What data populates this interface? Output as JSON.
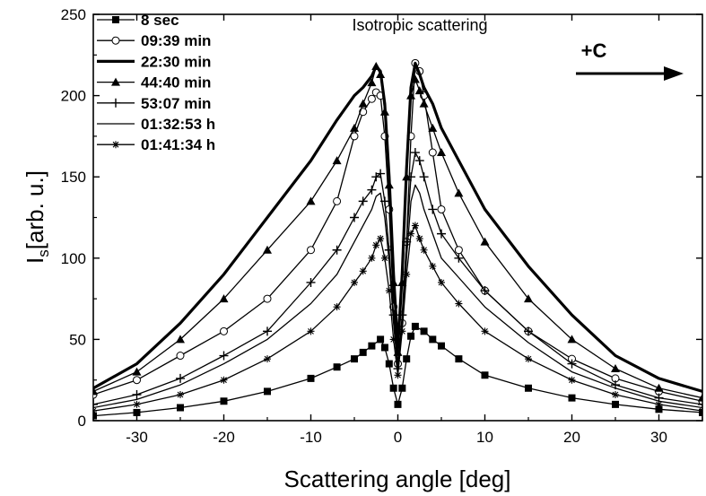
{
  "chart_data": {
    "type": "scatter",
    "title": "Isotropic scattering",
    "xlabel": "Scattering angle [deg]",
    "ylabel_main": "I",
    "ylabel_sub": "s",
    "ylabel_rest": "[arb. u.]",
    "xlim": [
      -35,
      35
    ],
    "ylim": [
      0,
      250
    ],
    "xticks": [
      -30,
      -20,
      -10,
      0,
      10,
      20,
      30
    ],
    "yticks": [
      0,
      50,
      100,
      150,
      200,
      250
    ],
    "grid": false,
    "legend_position": "top-left",
    "annotation": "+C",
    "series": [
      {
        "name": "8 sec",
        "marker": "square",
        "line_weight": "thin",
        "x": [
          -35,
          -30,
          -25,
          -20,
          -15,
          -10,
          -7,
          -5,
          -4,
          -3,
          -2,
          -1.5,
          -1,
          -0.5,
          0,
          0.5,
          1,
          1.5,
          2,
          3,
          4,
          5,
          7,
          10,
          15,
          20,
          25,
          30,
          35
        ],
        "y": [
          3,
          5,
          8,
          12,
          18,
          26,
          33,
          38,
          42,
          46,
          50,
          45,
          35,
          20,
          10,
          20,
          38,
          52,
          58,
          55,
          50,
          46,
          38,
          28,
          20,
          14,
          10,
          7,
          5
        ]
      },
      {
        "name": "09:39 min",
        "marker": "circle-open",
        "line_weight": "thin",
        "x": [
          -35,
          -30,
          -25,
          -20,
          -15,
          -10,
          -7,
          -5,
          -4,
          -3,
          -2.5,
          -2,
          -1.5,
          -1,
          -0.5,
          0,
          0.5,
          1,
          1.5,
          2,
          2.5,
          3,
          4,
          5,
          7,
          10,
          15,
          20,
          25,
          30,
          35
        ],
        "y": [
          16,
          25,
          40,
          55,
          75,
          105,
          135,
          175,
          190,
          198,
          202,
          200,
          175,
          130,
          70,
          35,
          60,
          110,
          175,
          220,
          215,
          200,
          165,
          130,
          105,
          80,
          55,
          38,
          26,
          18,
          12
        ]
      },
      {
        "name": "22:30 min",
        "marker": "none",
        "line_weight": "thick",
        "x": [
          -35,
          -30,
          -25,
          -20,
          -15,
          -10,
          -7,
          -5,
          -4,
          -3,
          -2.5,
          -2,
          -1.5,
          -1,
          -0.5,
          0,
          0.5,
          1,
          1.5,
          2,
          2.5,
          3,
          4,
          5,
          7,
          10,
          15,
          20,
          25,
          30,
          35
        ],
        "y": [
          20,
          35,
          60,
          90,
          125,
          160,
          185,
          200,
          205,
          212,
          218,
          215,
          195,
          150,
          90,
          45,
          90,
          155,
          205,
          220,
          213,
          205,
          195,
          180,
          160,
          130,
          95,
          65,
          40,
          26,
          18
        ]
      },
      {
        "name": "44:40 min",
        "marker": "triangle",
        "line_weight": "thin",
        "x": [
          -35,
          -30,
          -25,
          -20,
          -15,
          -10,
          -7,
          -5,
          -4,
          -3,
          -2.5,
          -2,
          -1.5,
          -1,
          -0.5,
          0,
          0.5,
          1,
          1.5,
          2,
          2.5,
          3,
          4,
          5,
          7,
          10,
          15,
          20,
          25,
          30,
          35
        ],
        "y": [
          18,
          30,
          50,
          75,
          105,
          135,
          160,
          180,
          195,
          208,
          218,
          213,
          190,
          145,
          85,
          42,
          85,
          150,
          200,
          210,
          203,
          195,
          180,
          165,
          140,
          110,
          75,
          50,
          32,
          20,
          14
        ]
      },
      {
        "name": "53:07 min",
        "marker": "plus",
        "line_weight": "thin",
        "x": [
          -35,
          -30,
          -25,
          -20,
          -15,
          -10,
          -7,
          -5,
          -4,
          -3,
          -2.5,
          -2,
          -1.5,
          -1,
          -0.5,
          0,
          0.5,
          1,
          1.5,
          2,
          2.5,
          3,
          4,
          5,
          7,
          10,
          15,
          20,
          25,
          30,
          35
        ],
        "y": [
          10,
          16,
          26,
          40,
          55,
          85,
          105,
          125,
          135,
          142,
          150,
          152,
          135,
          105,
          65,
          32,
          65,
          110,
          150,
          165,
          160,
          150,
          130,
          115,
          100,
          80,
          55,
          35,
          22,
          14,
          10
        ]
      },
      {
        "name": "01:32:53 h",
        "marker": "none",
        "line_weight": "thin",
        "x": [
          -35,
          -30,
          -25,
          -20,
          -15,
          -10,
          -7,
          -5,
          -4,
          -3,
          -2.5,
          -2,
          -1.5,
          -1,
          -0.5,
          0,
          0.5,
          1,
          1.5,
          2,
          2.5,
          3,
          4,
          5,
          7,
          10,
          15,
          20,
          25,
          30,
          35
        ],
        "y": [
          8,
          13,
          22,
          35,
          50,
          72,
          90,
          110,
          120,
          130,
          138,
          140,
          125,
          98,
          60,
          30,
          60,
          100,
          135,
          145,
          140,
          130,
          115,
          100,
          88,
          70,
          48,
          30,
          20,
          12,
          8
        ]
      },
      {
        "name": "01:41:34 h",
        "marker": "asterisk",
        "line_weight": "thin",
        "x": [
          -35,
          -30,
          -25,
          -20,
          -15,
          -10,
          -7,
          -5,
          -4,
          -3,
          -2.5,
          -2,
          -1.5,
          -1,
          -0.5,
          0,
          0.5,
          1,
          1.5,
          2,
          2.5,
          3,
          4,
          5,
          7,
          10,
          15,
          20,
          25,
          30,
          35
        ],
        "y": [
          6,
          10,
          16,
          25,
          38,
          55,
          70,
          85,
          92,
          100,
          108,
          112,
          100,
          80,
          50,
          28,
          55,
          90,
          115,
          120,
          112,
          105,
          95,
          85,
          72,
          55,
          38,
          25,
          16,
          10,
          6
        ]
      }
    ]
  }
}
